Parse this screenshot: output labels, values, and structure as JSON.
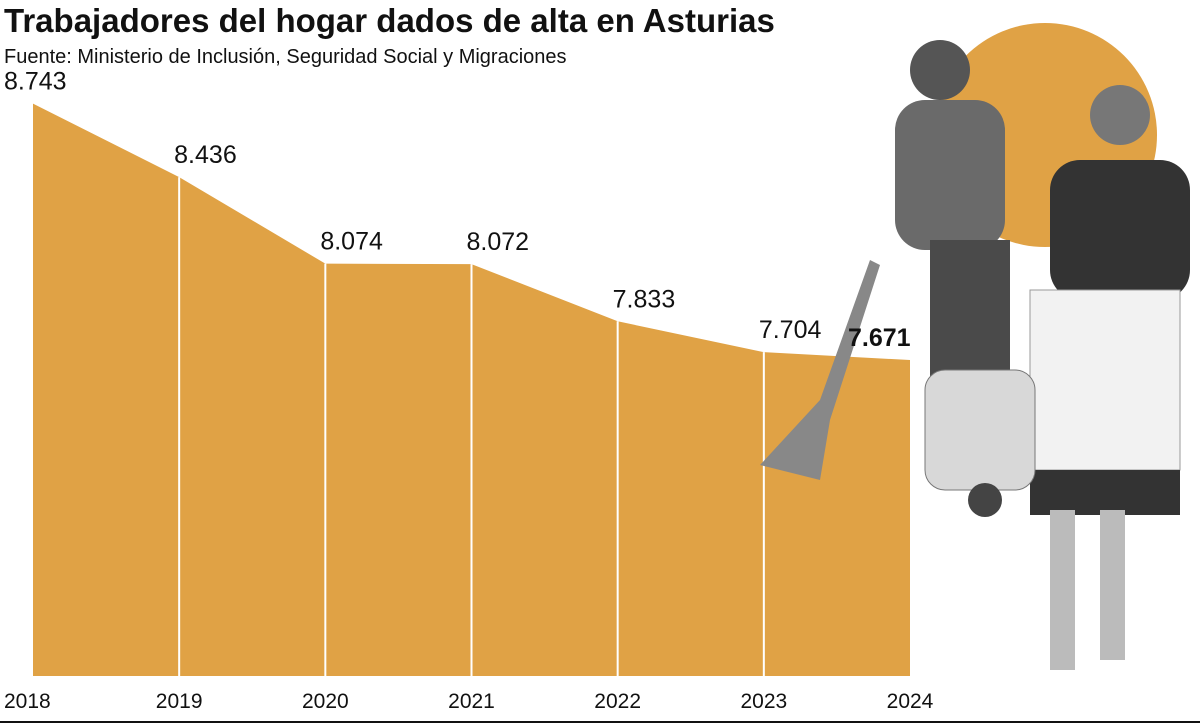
{
  "chart_data": {
    "type": "area",
    "title": "Trabajadores del hogar dados de alta en Asturias",
    "subtitle": "Fuente: Ministerio de Inclusión, Seguridad Social y Migraciones",
    "categories": [
      "2018",
      "2019",
      "2020",
      "2021",
      "2022",
      "2023",
      "2024"
    ],
    "values": [
      8743,
      8436,
      8074,
      8072,
      7833,
      7704,
      7671
    ],
    "value_labels": [
      "8.743",
      "8.436",
      "8.074",
      "8.072",
      "7.833",
      "7.704",
      "7.671"
    ],
    "color": "#e0a245",
    "ylim": [
      6350,
      8800
    ]
  }
}
